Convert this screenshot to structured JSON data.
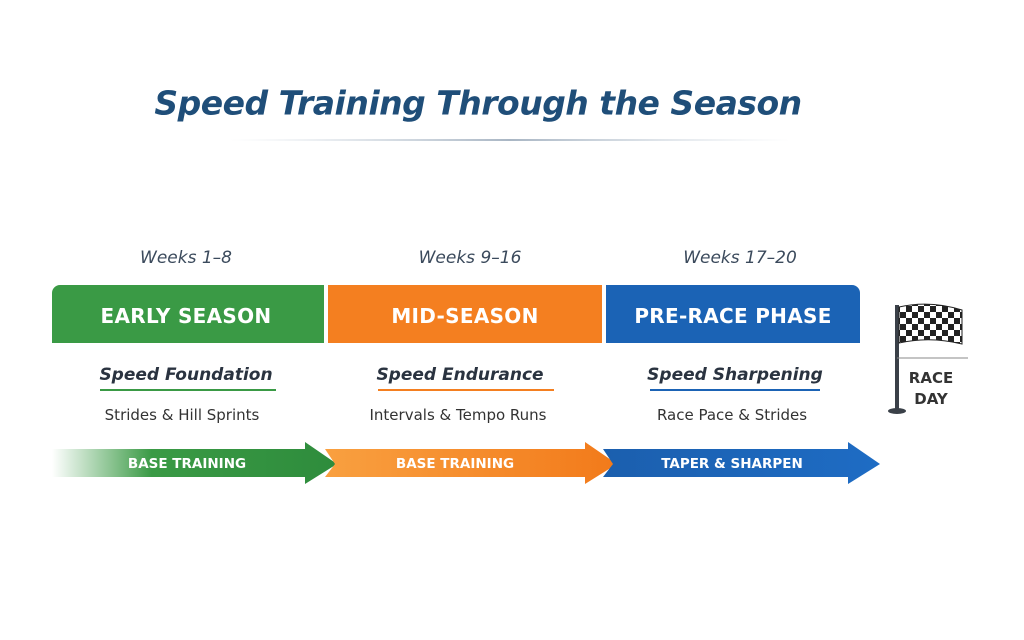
{
  "header": {
    "title": "Speed Training Through the Season"
  },
  "phases": [
    {
      "weeks": "Weeks 1–8",
      "name": "EARLY SEASON",
      "focus": "Speed Foundation",
      "workouts": "Strides & Hill Sprints",
      "arrow": "BASE TRAINING"
    },
    {
      "weeks": "Weeks 9–16",
      "name": "MID-SEASON",
      "focus": "Speed Endurance",
      "workouts": "Intervals & Tempo Runs",
      "arrow": "BASE TRAINING"
    },
    {
      "weeks": "Weeks 17–20",
      "name": "PRE-RACE PHASE",
      "focus": "Speed Sharpening",
      "workouts": "Race Pace & Strides",
      "arrow": "TAPER & SHARPEN"
    }
  ],
  "finish": {
    "label": "RACE DAY"
  }
}
